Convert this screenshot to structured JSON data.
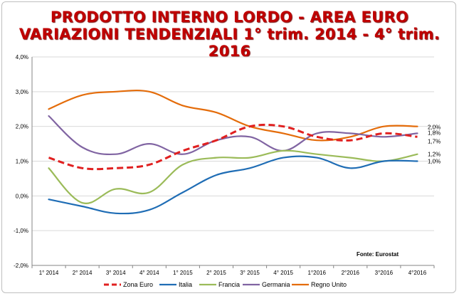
{
  "title_line1": "PRODOTTO INTERNO LORDO - AREA EURO",
  "title_line2": "VARIAZIONI TENDENZIALI 1° trim. 2014 - 4° trim. 2016",
  "source": "Fonte: Eurostat",
  "colors": {
    "title": "#c00000",
    "zona_euro": "#e02020",
    "italia": "#1f6db5",
    "francia": "#9bbb59",
    "germania": "#8064a2",
    "regno_unito": "#e46c0a"
  },
  "chart_data": {
    "type": "line",
    "title": "PRODOTTO INTERNO LORDO - AREA EURO",
    "subtitle": "VARIAZIONI TENDENZIALI 1° trim. 2014 - 4° trim. 2016",
    "categories": [
      "1° 2014",
      "2° 2014",
      "3° 2014",
      "4° 2014",
      "1° 2015",
      "2° 2015",
      "3° 2015",
      "4° 2015",
      "1°2016",
      "2°2016",
      "3°2016",
      "4°2016"
    ],
    "y_ticks": [
      "4,0%",
      "3,0%",
      "2,0%",
      "1,0%",
      "0,0%",
      "-1,0%",
      "-2,0%"
    ],
    "ylim": [
      -2.0,
      4.0
    ],
    "grid": "horizontal",
    "legend_position": "bottom",
    "series": [
      {
        "name": "Zona Euro",
        "color_key": "zona_euro",
        "dashed": true,
        "values": [
          1.1,
          0.8,
          0.8,
          0.9,
          1.3,
          1.6,
          2.0,
          2.0,
          1.7,
          1.6,
          1.8,
          1.7
        ],
        "end_label": "1,7%"
      },
      {
        "name": "Italia",
        "color_key": "italia",
        "dashed": false,
        "values": [
          -0.1,
          -0.3,
          -0.5,
          -0.4,
          0.1,
          0.6,
          0.8,
          1.1,
          1.1,
          0.8,
          1.0,
          1.0
        ],
        "end_label": "1,0%"
      },
      {
        "name": "Francia",
        "color_key": "francia",
        "dashed": false,
        "values": [
          0.8,
          -0.2,
          0.2,
          0.1,
          0.9,
          1.1,
          1.1,
          1.3,
          1.2,
          1.1,
          1.0,
          1.2
        ],
        "end_label": "1,2%"
      },
      {
        "name": "Germania",
        "color_key": "germania",
        "dashed": false,
        "values": [
          2.3,
          1.4,
          1.2,
          1.5,
          1.2,
          1.6,
          1.7,
          1.3,
          1.8,
          1.8,
          1.7,
          1.8
        ],
        "end_label": "1,8%"
      },
      {
        "name": "Regno Unito",
        "color_key": "regno_unito",
        "dashed": false,
        "values": [
          2.5,
          2.9,
          3.0,
          3.0,
          2.6,
          2.4,
          2.0,
          1.8,
          1.6,
          1.7,
          2.0,
          2.0
        ],
        "end_label": "2,0%"
      }
    ]
  }
}
